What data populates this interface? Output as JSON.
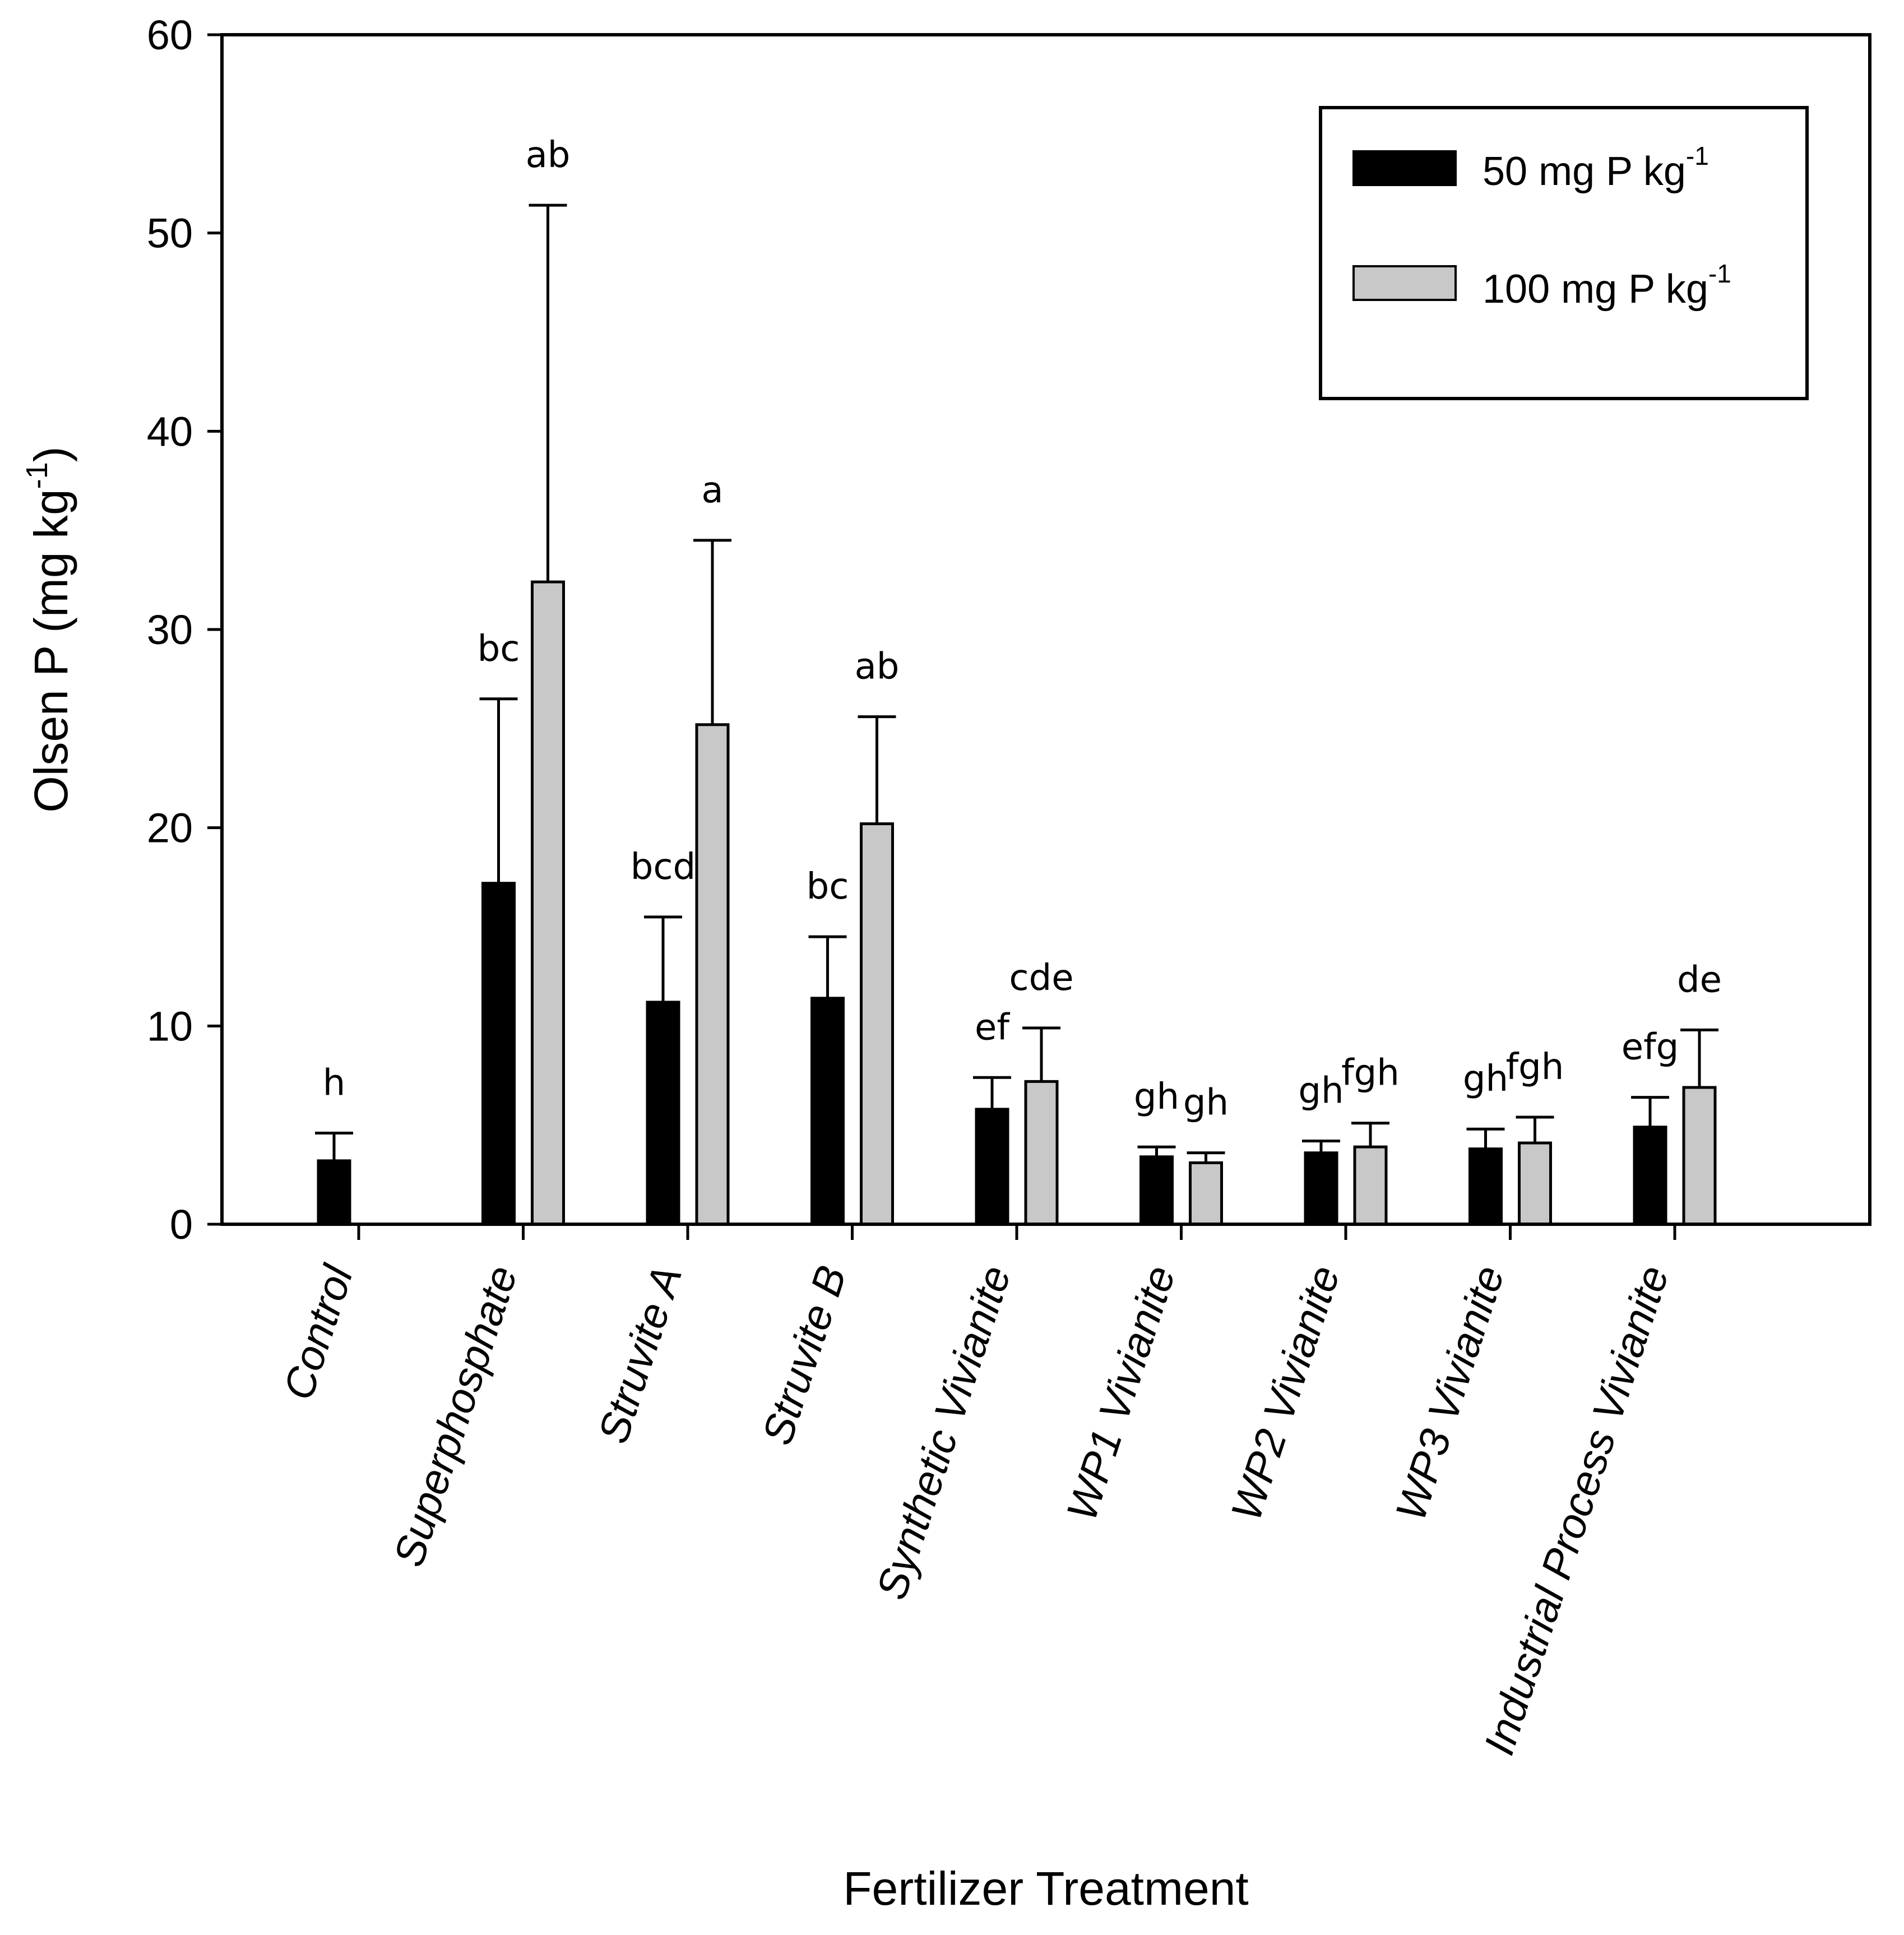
{
  "chart_data": {
    "type": "bar",
    "title": "",
    "xlabel": "Fertilizer Treatment",
    "ylabel": "Olsen P (mg kg",
    "ylabel_sup": "-1",
    "ylabel_close": ")",
    "ylim": [
      0,
      60
    ],
    "yticks": [
      0,
      10,
      20,
      30,
      40,
      50,
      60
    ],
    "grid": false,
    "legend_position": "top-right",
    "categories": [
      "Control",
      "Superphosphate",
      "Struvite A",
      "Struvite B",
      "Synthetic Vivianite",
      "WP1 Vivianite",
      "WP2 Vivianite",
      "WP3 Vivianite",
      "Industrial Process Vivianite"
    ],
    "series": [
      {
        "name": "50 mg P kg",
        "name_sup": "-1",
        "color": "#000000",
        "values": [
          3.2,
          17.2,
          11.2,
          11.4,
          5.8,
          3.4,
          3.6,
          3.8,
          4.9
        ],
        "errors": [
          1.4,
          9.3,
          4.3,
          3.1,
          1.6,
          0.5,
          0.6,
          1.0,
          1.5
        ],
        "letters": [
          "h",
          "bc",
          "bcd",
          "bc",
          "ef",
          "gh",
          "gh",
          "gh",
          "efg"
        ]
      },
      {
        "name": "100 mg P kg",
        "name_sup": "-1",
        "color": "#c8c8c8",
        "values": [
          null,
          32.4,
          25.2,
          20.2,
          7.2,
          3.1,
          3.9,
          4.1,
          6.9
        ],
        "errors": [
          null,
          19.0,
          9.3,
          5.4,
          2.7,
          0.5,
          1.2,
          1.3,
          2.9
        ],
        "letters": [
          "",
          "ab",
          "a",
          "ab",
          "cde",
          "gh",
          "fgh",
          "fgh",
          "de"
        ]
      }
    ]
  }
}
